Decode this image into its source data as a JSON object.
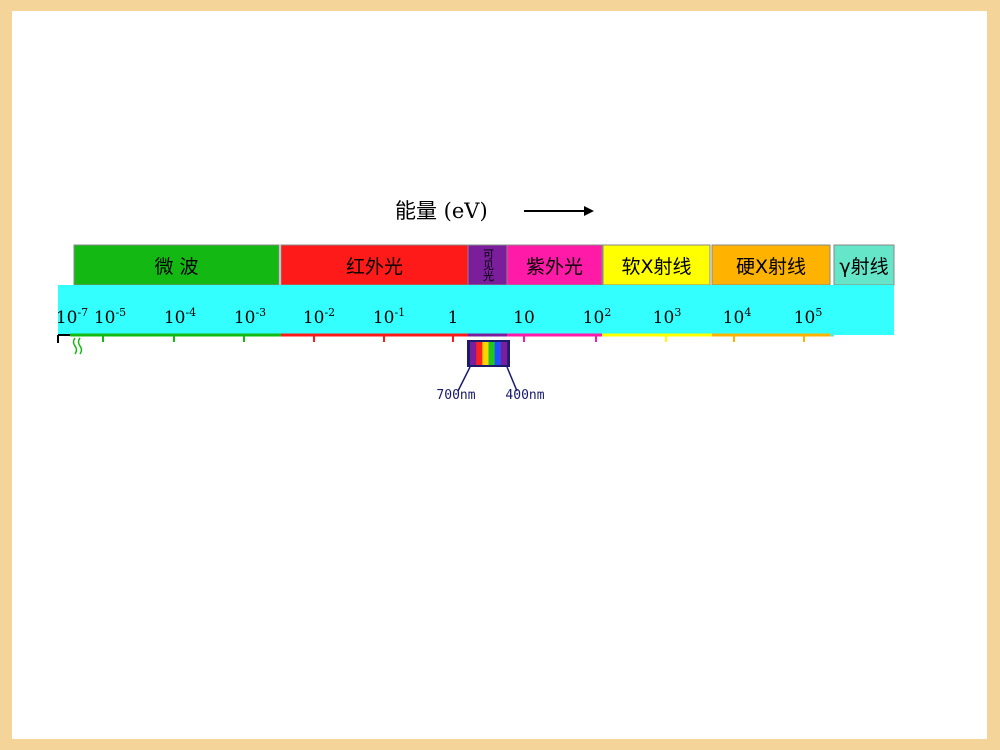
{
  "energy_label": "能量 (eV)",
  "bands": [
    {
      "name": "微 波",
      "color": "#13b813"
    },
    {
      "name": "红外光",
      "color": "#ff1a1a"
    },
    {
      "name": "可见光",
      "color": "#7a1e9c"
    },
    {
      "name": "紫外光",
      "color": "#ff1aa8"
    },
    {
      "name": "软X射线",
      "color": "#ffff00"
    },
    {
      "name": "硬X射线",
      "color": "#ffb300"
    },
    {
      "name": "γ射线",
      "color": "#66e6c8"
    }
  ],
  "scale_color": "#33ffff",
  "ticks": [
    {
      "base": "10",
      "exp": "-7"
    },
    {
      "base": "10",
      "exp": "-5"
    },
    {
      "base": "10",
      "exp": "-4"
    },
    {
      "base": "10",
      "exp": "-3"
    },
    {
      "base": "10",
      "exp": "-2"
    },
    {
      "base": "10",
      "exp": "-1"
    },
    {
      "base": "1",
      "exp": ""
    },
    {
      "base": "10",
      "exp": ""
    },
    {
      "base": "10",
      "exp": "2"
    },
    {
      "base": "10",
      "exp": "3"
    },
    {
      "base": "10",
      "exp": "4"
    },
    {
      "base": "10",
      "exp": "5"
    }
  ],
  "visible_spectrum": {
    "colors": [
      "#7a1e9c",
      "#ff2020",
      "#ffd400",
      "#22c422",
      "#2050ff",
      "#7a1e9c"
    ],
    "left_label": "700nm",
    "right_label": "400nm"
  }
}
